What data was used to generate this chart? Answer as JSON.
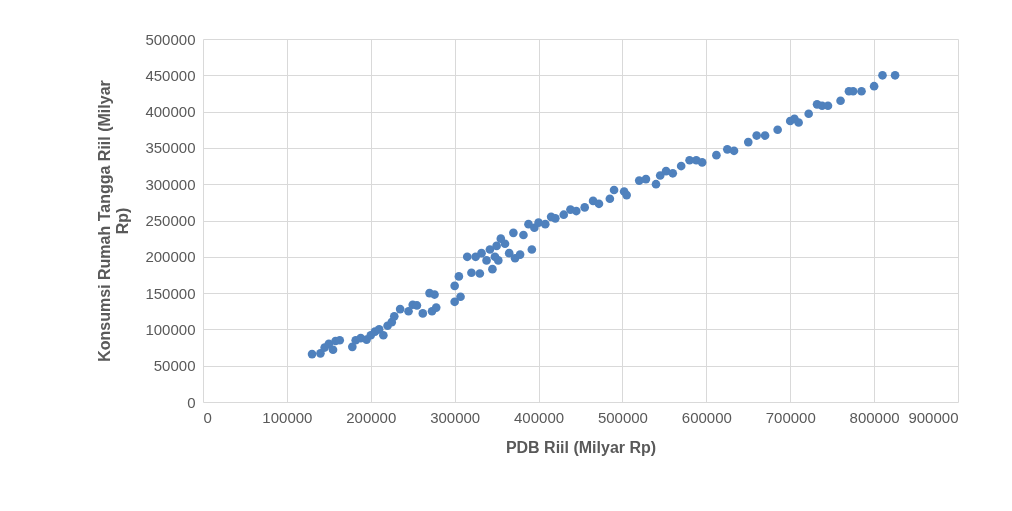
{
  "chart_data": {
    "type": "scatter",
    "xlabel": "PDB Riil (Milyar Rp)",
    "ylabel": "Konsumsi Rumah Tangga Riil (Milyar Rp)",
    "xlim": [
      0,
      900000
    ],
    "xticks": [
      0,
      100000,
      200000,
      300000,
      400000,
      500000,
      600000,
      700000,
      800000,
      900000
    ],
    "ylim": [
      0,
      500000
    ],
    "yticks": [
      0,
      50000,
      100000,
      150000,
      200000,
      250000,
      300000,
      350000,
      400000,
      450000,
      500000
    ],
    "grid": true,
    "marker": "circle",
    "series": [
      {
        "color": "#4f81bd",
        "x": [
          130000,
          140000,
          145000,
          150000,
          155000,
          158000,
          163000,
          178000,
          182000,
          188000,
          195000,
          200000,
          205000,
          210000,
          215000,
          220000,
          225000,
          228000,
          235000,
          245000,
          250000,
          255000,
          262000,
          270000,
          273000,
          276000,
          278000,
          300000,
          300000,
          305000,
          307000,
          315000,
          320000,
          325000,
          330000,
          332000,
          338000,
          342000,
          345000,
          348000,
          350000,
          352000,
          355000,
          360000,
          365000,
          370000,
          372000,
          378000,
          382000,
          388000,
          392000,
          395000,
          400000,
          408000,
          415000,
          420000,
          430000,
          438000,
          445000,
          455000,
          465000,
          472000,
          485000,
          490000,
          502000,
          505000,
          520000,
          528000,
          540000,
          545000,
          552000,
          560000,
          570000,
          580000,
          588000,
          595000,
          612000,
          625000,
          633000,
          650000,
          660000,
          670000,
          685000,
          700000,
          705000,
          710000,
          722000,
          732000,
          738000,
          745000,
          760000,
          770000,
          775000,
          785000,
          800000,
          810000,
          825000
        ],
        "values": [
          66000,
          67000,
          75000,
          80000,
          72000,
          84000,
          85000,
          76000,
          85000,
          88000,
          86000,
          92000,
          97000,
          100000,
          92000,
          105000,
          110000,
          118000,
          128000,
          125000,
          134000,
          133000,
          122000,
          150000,
          125000,
          148000,
          130000,
          138000,
          160000,
          173000,
          145000,
          200000,
          178000,
          200000,
          177000,
          205000,
          195000,
          210000,
          183000,
          200000,
          215000,
          195000,
          225000,
          218000,
          205000,
          233000,
          198000,
          203000,
          230000,
          245000,
          210000,
          240000,
          247000,
          245000,
          255000,
          253000,
          258000,
          265000,
          263000,
          268000,
          277000,
          273000,
          280000,
          292000,
          290000,
          285000,
          305000,
          307000,
          300000,
          312000,
          318000,
          315000,
          325000,
          333000,
          333000,
          330000,
          340000,
          348000,
          346000,
          358000,
          367000,
          367000,
          375000,
          387000,
          390000,
          385000,
          397000,
          410000,
          408000,
          408000,
          415000,
          428000,
          428000,
          428000,
          435000,
          450000,
          450000
        ]
      }
    ]
  }
}
